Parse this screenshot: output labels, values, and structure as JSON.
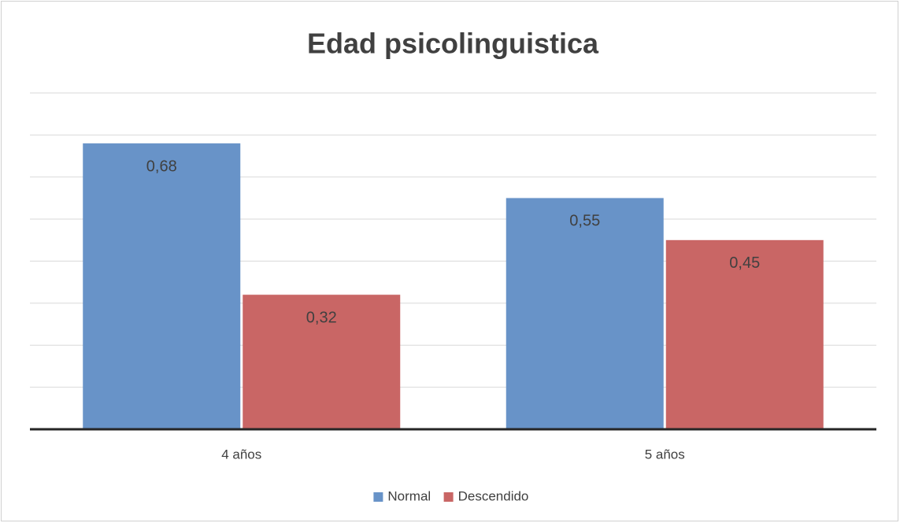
{
  "chart_data": {
    "type": "bar",
    "title": "Edad psicolinguistica",
    "categories": [
      "4 años",
      "5 años"
    ],
    "series": [
      {
        "name": "Normal",
        "color": "#6893c8",
        "values": [
          0.68,
          0.55
        ],
        "value_labels": [
          "0,68",
          "0,55"
        ]
      },
      {
        "name": "Descendido",
        "color": "#c96665",
        "values": [
          0.32,
          0.45
        ],
        "value_labels": [
          "0,32",
          "0,45"
        ]
      }
    ],
    "ylim": [
      0,
      0.8
    ],
    "yticks": [
      0,
      0.1,
      0.2,
      0.3,
      0.4,
      0.5,
      0.6,
      0.7,
      0.8
    ],
    "grid": true,
    "legend": "bottom"
  }
}
